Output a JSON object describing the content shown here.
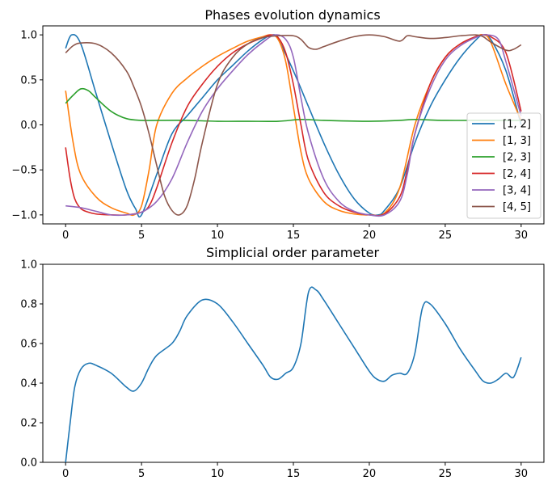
{
  "chart_data": [
    {
      "type": "line",
      "title": "Phases evolution dynamics",
      "xlabel": "",
      "ylabel": "",
      "xlim": [
        -1.5,
        31.5
      ],
      "ylim": [
        -1.1,
        1.1
      ],
      "xticks": [
        0,
        5,
        10,
        15,
        20,
        25,
        30
      ],
      "yticks": [
        -1.0,
        -0.5,
        0.0,
        0.5,
        1.0
      ],
      "ytick_labels": [
        "−1.0",
        "−0.5",
        "0.0",
        "0.5",
        "1.0"
      ],
      "grid": false,
      "legend_position": "center-right",
      "series": [
        {
          "name": "[1, 2]",
          "color": "#1f77b4",
          "x": [
            0,
            0.4,
            1,
            2,
            3,
            4,
            4.6,
            5,
            6,
            7,
            8,
            9,
            10,
            11,
            12,
            13,
            13.6,
            14,
            15,
            16,
            17,
            18,
            19,
            20,
            20.6,
            21,
            22,
            23,
            24,
            25,
            26,
            27,
            27.5,
            28,
            29,
            30
          ],
          "y": [
            0.85,
            1.0,
            0.9,
            0.35,
            -0.2,
            -0.72,
            -0.93,
            -1.0,
            -0.55,
            -0.1,
            0.1,
            0.3,
            0.5,
            0.66,
            0.82,
            0.95,
            1.0,
            0.95,
            0.6,
            0.2,
            -0.2,
            -0.55,
            -0.82,
            -0.98,
            -1.0,
            -0.95,
            -0.7,
            -0.2,
            0.2,
            0.5,
            0.75,
            0.94,
            1.0,
            0.95,
            0.6,
            0.0
          ]
        },
        {
          "name": "[1, 3]",
          "color": "#ff7f0e",
          "x": [
            0,
            0.5,
            1,
            2,
            3,
            4,
            4.5,
            5,
            5.5,
            6,
            7,
            8,
            9,
            10,
            11,
            12,
            13,
            13.5,
            14,
            14.5,
            15,
            15.5,
            16,
            17,
            18,
            19,
            20,
            21,
            22,
            23,
            24,
            25,
            26,
            27,
            27.5,
            28,
            29,
            30
          ],
          "y": [
            0.38,
            -0.2,
            -0.55,
            -0.8,
            -0.92,
            -0.98,
            -1.0,
            -0.9,
            -0.5,
            0.0,
            0.35,
            0.52,
            0.65,
            0.76,
            0.85,
            0.93,
            0.98,
            1.0,
            0.95,
            0.7,
            0.2,
            -0.3,
            -0.6,
            -0.85,
            -0.95,
            -0.99,
            -1.0,
            -0.98,
            -0.7,
            0.0,
            0.45,
            0.75,
            0.9,
            0.98,
            1.0,
            0.92,
            0.45,
            0.05
          ]
        },
        {
          "name": "[2, 3]",
          "color": "#2ca02c",
          "x": [
            0,
            0.5,
            1,
            1.5,
            2,
            3,
            4,
            5,
            6,
            8,
            10,
            12,
            14,
            15.5,
            17,
            20,
            22,
            23,
            25,
            28,
            30
          ],
          "y": [
            0.24,
            0.33,
            0.4,
            0.38,
            0.3,
            0.15,
            0.07,
            0.05,
            0.05,
            0.05,
            0.04,
            0.04,
            0.04,
            0.06,
            0.05,
            0.04,
            0.05,
            0.06,
            0.05,
            0.05,
            0.05
          ]
        },
        {
          "name": "[2, 4]",
          "color": "#d62728",
          "x": [
            0,
            0.3,
            0.6,
            1,
            1.5,
            2,
            3,
            4,
            5,
            5.5,
            6,
            7,
            8,
            9,
            10,
            11,
            12,
            13,
            13.5,
            14,
            14.5,
            15,
            15.5,
            16,
            17,
            18,
            19,
            20,
            21,
            22,
            22.5,
            23,
            24,
            25,
            26,
            27,
            27.5,
            28,
            29,
            30
          ],
          "y": [
            -0.25,
            -0.6,
            -0.82,
            -0.93,
            -0.97,
            -0.99,
            -1.0,
            -1.0,
            -0.97,
            -0.9,
            -0.7,
            -0.2,
            0.2,
            0.45,
            0.65,
            0.8,
            0.9,
            0.97,
            1.0,
            0.97,
            0.8,
            0.45,
            0.0,
            -0.4,
            -0.75,
            -0.9,
            -0.97,
            -1.0,
            -0.99,
            -0.8,
            -0.5,
            -0.1,
            0.45,
            0.75,
            0.9,
            0.98,
            1.0,
            0.98,
            0.8,
            0.15
          ]
        },
        {
          "name": "[3, 4]",
          "color": "#9467bd",
          "x": [
            0,
            1,
            2,
            3,
            4,
            5,
            6,
            7,
            8,
            9,
            10,
            11,
            12,
            13,
            13.8,
            14.5,
            15,
            15.5,
            16,
            17,
            18,
            19,
            20,
            21,
            22,
            22.5,
            23,
            24,
            25,
            26,
            27,
            27.7,
            28.5,
            29,
            30
          ],
          "y": [
            -0.9,
            -0.92,
            -0.96,
            -1.0,
            -1.0,
            -0.97,
            -0.85,
            -0.6,
            -0.2,
            0.15,
            0.4,
            0.6,
            0.78,
            0.92,
            1.0,
            0.95,
            0.75,
            0.3,
            -0.1,
            -0.6,
            -0.85,
            -0.96,
            -1.0,
            -1.0,
            -0.85,
            -0.55,
            -0.1,
            0.4,
            0.72,
            0.88,
            0.97,
            1.0,
            0.95,
            0.7,
            0.1
          ]
        },
        {
          "name": "[4, 5]",
          "color": "#8c564b",
          "x": [
            0,
            0.5,
            1,
            2,
            3,
            4,
            4.5,
            5,
            5.5,
            6,
            6.5,
            7,
            7.5,
            8,
            8.5,
            9,
            10,
            11,
            12,
            13,
            14,
            15,
            15.5,
            16,
            16.5,
            17,
            18,
            19,
            20,
            21,
            22,
            22.5,
            23,
            24,
            25,
            26,
            27,
            27.5,
            28,
            29,
            29.5,
            30
          ],
          "y": [
            0.8,
            0.88,
            0.91,
            0.9,
            0.8,
            0.6,
            0.42,
            0.2,
            -0.1,
            -0.45,
            -0.78,
            -0.95,
            -1.0,
            -0.9,
            -0.6,
            -0.2,
            0.45,
            0.75,
            0.9,
            0.97,
            0.99,
            0.99,
            0.95,
            0.86,
            0.84,
            0.87,
            0.93,
            0.98,
            1.0,
            0.98,
            0.93,
            0.99,
            0.98,
            0.96,
            0.97,
            0.99,
            1.0,
            0.98,
            0.92,
            0.83,
            0.84,
            0.89
          ]
        }
      ]
    },
    {
      "type": "line",
      "title": "Simplicial order parameter",
      "xlabel": "",
      "ylabel": "",
      "xlim": [
        -1.5,
        31.5
      ],
      "ylim": [
        0.0,
        1.0
      ],
      "xticks": [
        0,
        5,
        10,
        15,
        20,
        25,
        30
      ],
      "yticks": [
        0.0,
        0.2,
        0.4,
        0.6,
        0.8,
        1.0
      ],
      "ytick_labels": [
        "0.0",
        "0.2",
        "0.4",
        "0.6",
        "0.8",
        "1.0"
      ],
      "grid": false,
      "series": [
        {
          "color": "#1f77b4",
          "x": [
            0,
            0.3,
            0.6,
            1,
            1.5,
            2,
            3,
            4,
            4.5,
            5,
            5.5,
            6,
            7,
            7.5,
            8,
            9,
            10,
            11,
            12,
            13,
            13.5,
            14,
            14.5,
            15,
            15.5,
            16,
            16.5,
            17,
            18,
            19,
            20,
            20.5,
            21,
            21.5,
            22,
            22.5,
            23,
            23.5,
            24,
            25,
            26,
            27,
            27.5,
            28,
            28.5,
            29,
            29.5,
            30
          ],
          "y": [
            0.0,
            0.2,
            0.38,
            0.47,
            0.5,
            0.49,
            0.45,
            0.38,
            0.36,
            0.4,
            0.48,
            0.54,
            0.6,
            0.66,
            0.74,
            0.82,
            0.8,
            0.71,
            0.6,
            0.49,
            0.43,
            0.42,
            0.45,
            0.48,
            0.6,
            0.86,
            0.87,
            0.82,
            0.7,
            0.58,
            0.46,
            0.42,
            0.41,
            0.44,
            0.45,
            0.45,
            0.55,
            0.78,
            0.8,
            0.7,
            0.57,
            0.46,
            0.41,
            0.4,
            0.42,
            0.45,
            0.43,
            0.53
          ]
        }
      ]
    }
  ]
}
